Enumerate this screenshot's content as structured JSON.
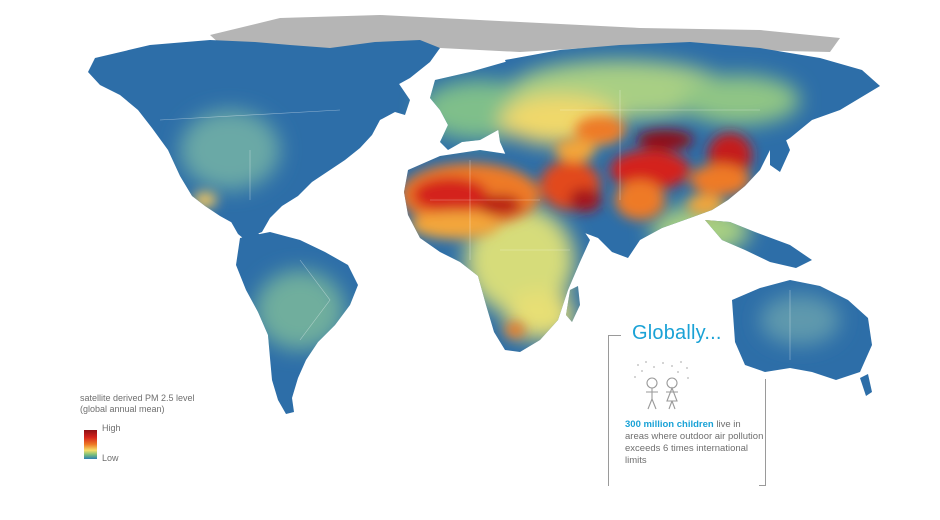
{
  "legend": {
    "title_line1": "satellite derived PM 2.5 level",
    "title_line2": "(global annual mean)",
    "high": "High",
    "low": "Low"
  },
  "callout": {
    "heading": "Globally...",
    "highlight": "300 million children",
    "text_rest": " live in areas where outdoor air pollution exceeds 6 times international limits"
  },
  "colors": {
    "ocean": "#ffffff",
    "ice": "#b5b5b5",
    "low": "#2d6ea8",
    "mid_green": "#7fbf8a",
    "mid_yellow": "#f3dc6b",
    "high_orange": "#ee7a25",
    "high_red": "#d4231b",
    "highest": "#8e1014",
    "accent": "#1aa2d6"
  }
}
